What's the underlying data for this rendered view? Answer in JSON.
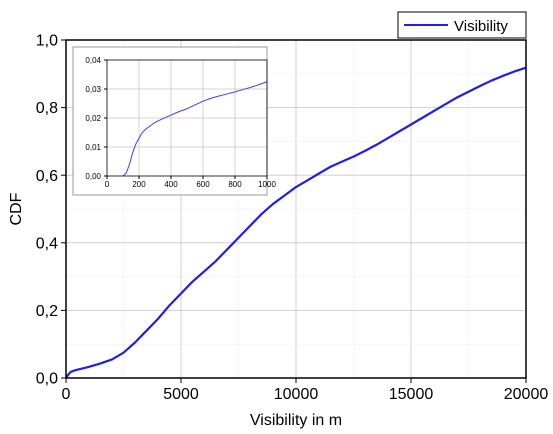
{
  "chart_data": [
    {
      "type": "line",
      "title": "",
      "xlabel": "Visibility in m",
      "ylabel": "CDF",
      "xlim": [
        0,
        20000
      ],
      "ylim": [
        0,
        1.0
      ],
      "x_ticks": [
        "0",
        "5000",
        "10000",
        "15000",
        "20000"
      ],
      "y_ticks": [
        "0,0",
        "0,2",
        "0,4",
        "0,6",
        "0,8",
        "1,0"
      ],
      "grid": true,
      "legend_position": "top-right",
      "series": [
        {
          "name": "Visibility",
          "color": "#1f1fe6",
          "x": [
            0,
            100,
            200,
            400,
            700,
            1000,
            1500,
            2000,
            2500,
            3000,
            3500,
            4000,
            4500,
            5000,
            5500,
            6000,
            6500,
            7000,
            7500,
            8000,
            8500,
            9000,
            9500,
            10000,
            10500,
            11000,
            11500,
            12000,
            12500,
            13000,
            13500,
            14000,
            14500,
            15000,
            15500,
            16000,
            16500,
            17000,
            17500,
            18000,
            18500,
            19000,
            19500,
            20000
          ],
          "y": [
            0.0,
            0.01,
            0.018,
            0.023,
            0.028,
            0.033,
            0.043,
            0.055,
            0.075,
            0.105,
            0.14,
            0.175,
            0.215,
            0.25,
            0.285,
            0.315,
            0.345,
            0.38,
            0.415,
            0.45,
            0.485,
            0.515,
            0.54,
            0.565,
            0.585,
            0.605,
            0.625,
            0.64,
            0.655,
            0.672,
            0.69,
            0.71,
            0.73,
            0.75,
            0.77,
            0.79,
            0.81,
            0.83,
            0.847,
            0.864,
            0.88,
            0.894,
            0.907,
            0.918
          ]
        }
      ]
    },
    {
      "type": "line",
      "title": "",
      "xlabel": "",
      "ylabel": "",
      "xlim": [
        0,
        1000
      ],
      "ylim": [
        0,
        0.04
      ],
      "x_ticks": [
        "0",
        "200",
        "400",
        "600",
        "800",
        "1000"
      ],
      "y_ticks": [
        "0,00",
        "0,01",
        "0,02",
        "0,03",
        "0,04"
      ],
      "grid": true,
      "series": [
        {
          "color": "#4040ee",
          "x": [
            100,
            120,
            140,
            160,
            180,
            200,
            220,
            250,
            300,
            350,
            400,
            450,
            500,
            550,
            600,
            650,
            700,
            750,
            800,
            850,
            900,
            950,
            1000
          ],
          "y": [
            0.0,
            0.001,
            0.004,
            0.008,
            0.011,
            0.013,
            0.015,
            0.0165,
            0.0185,
            0.0198,
            0.021,
            0.0222,
            0.0232,
            0.0245,
            0.0258,
            0.0268,
            0.0276,
            0.0283,
            0.029,
            0.0298,
            0.0306,
            0.0315,
            0.0325
          ]
        }
      ]
    }
  ]
}
